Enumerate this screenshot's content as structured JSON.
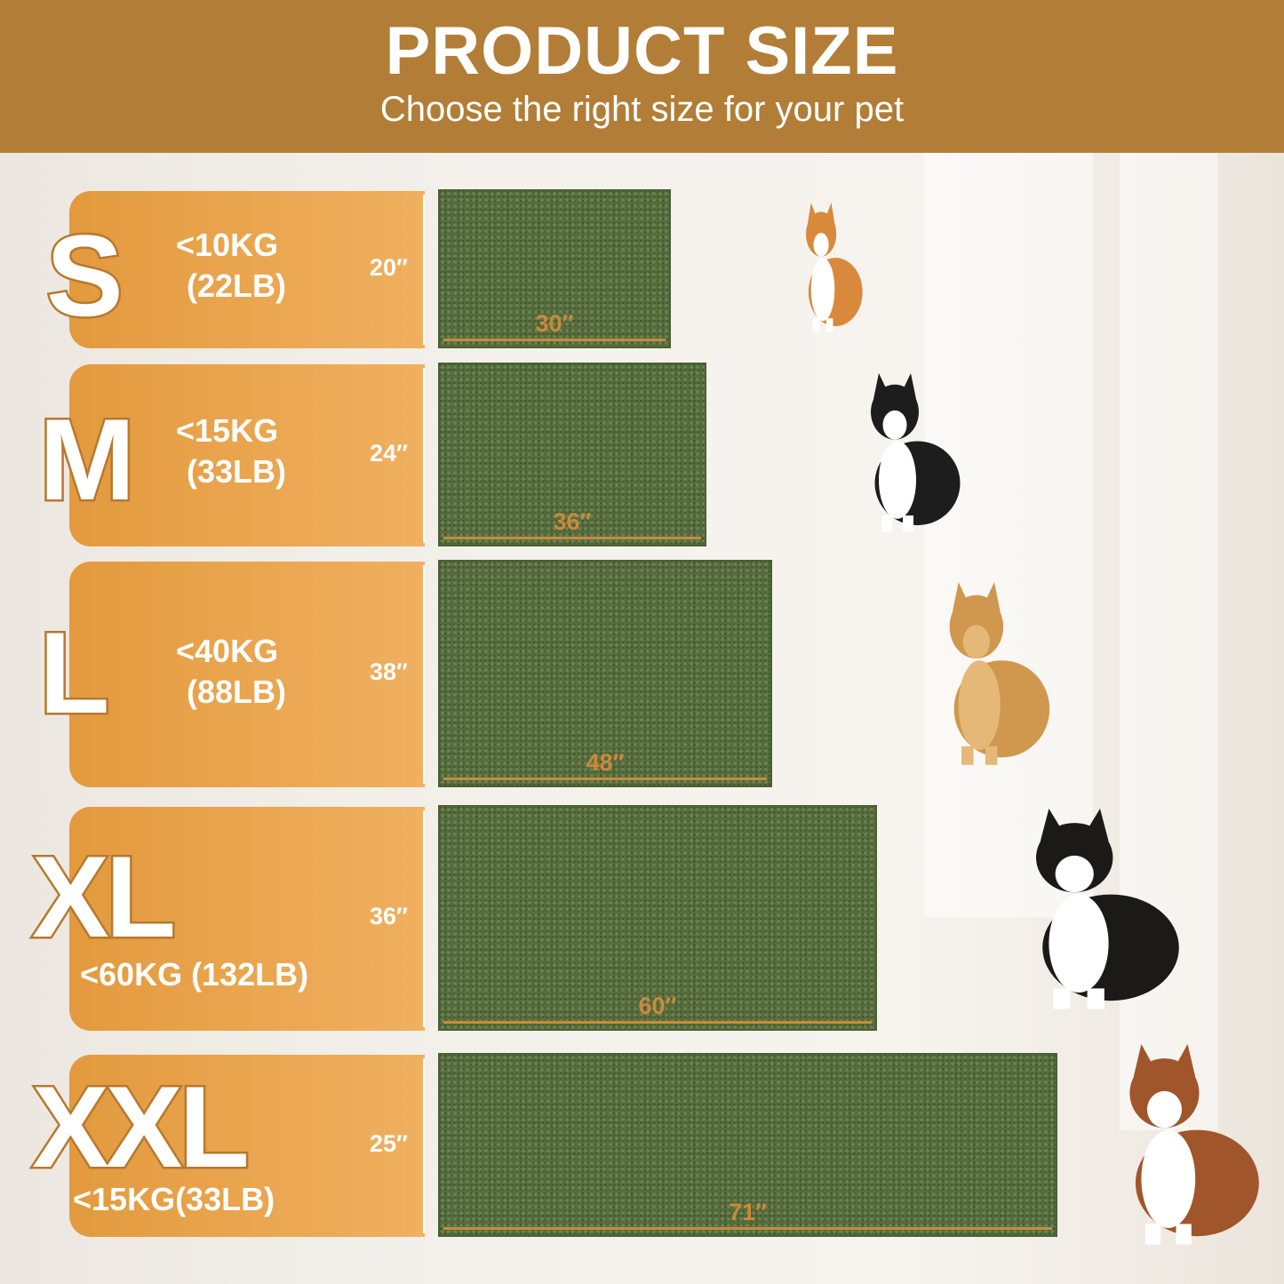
{
  "header": {
    "title": "PRODUCT SIZE",
    "subtitle": "Choose the right size for your pet"
  },
  "colors": {
    "header": "#b27d36",
    "panel": "#e9a24c",
    "mat": "#566c3d",
    "dimension_line": "#c98a3c"
  },
  "sizes": [
    {
      "label": "S",
      "weight_line1": "<10KG",
      "weight_line2": "(22LB)",
      "height": "20″",
      "width": "30″",
      "dog": "corgi"
    },
    {
      "label": "M",
      "weight_line1": "<15KG",
      "weight_line2": "(33LB)",
      "height": "24″",
      "width": "36″",
      "dog": "border-collie"
    },
    {
      "label": "L",
      "weight_line1": "<40KG",
      "weight_line2": "(88LB)",
      "height": "38″",
      "width": "48″",
      "dog": "golden-retriever"
    },
    {
      "label": "XL",
      "weight_line1": "<60KG (132LB)",
      "weight_line2": "",
      "height": "36″",
      "width": "60″",
      "dog": "bernese-mountain-dog"
    },
    {
      "label": "XXL",
      "weight_line1": "<15KG(33LB)",
      "weight_line2": "",
      "height": "25″",
      "width": "71″",
      "dog": "saint-bernard"
    }
  ]
}
